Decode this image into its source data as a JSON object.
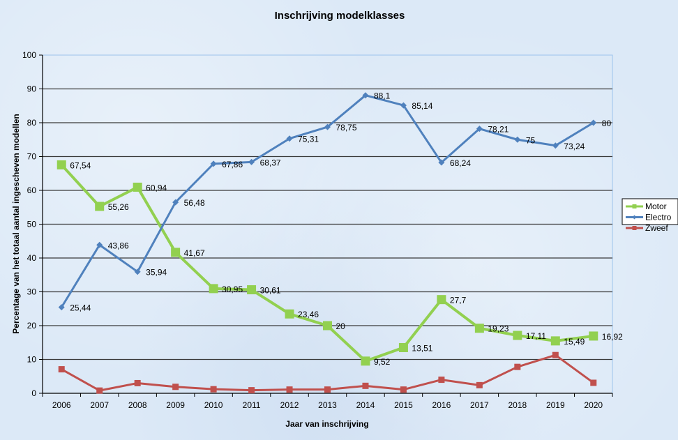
{
  "chart_data": {
    "type": "line",
    "title": "Inschrijving modelklasses",
    "xlabel": "Jaar van inschrijving",
    "ylabel": "Percentage van het totaal aantal ingescheven modellen",
    "ylim": [
      0,
      100
    ],
    "yticks": [
      "0",
      "10",
      "20",
      "30",
      "40",
      "50",
      "60",
      "70",
      "80",
      "90",
      "100"
    ],
    "grid": true,
    "legend_position": "right",
    "categories": [
      "2006",
      "2007",
      "2008",
      "2009",
      "2010",
      "2011",
      "2012",
      "2013",
      "2014",
      "2015",
      "2016",
      "2017",
      "2018",
      "2019",
      "2020"
    ],
    "series": [
      {
        "name": "Motor",
        "color": "#92d050",
        "marker": "square",
        "values": [
          67.54,
          55.26,
          60.94,
          41.67,
          30.95,
          30.61,
          23.46,
          20,
          9.52,
          13.51,
          27.7,
          19.23,
          17.11,
          15.49,
          16.92
        ],
        "labels": [
          "67,54",
          "55,26",
          "60,94",
          "41,67",
          "30,95",
          "30,61",
          "23,46",
          "20",
          "9,52",
          "13,51",
          "27,7",
          "19,23",
          "17,11",
          "15,49",
          "16,92"
        ]
      },
      {
        "name": "Electro",
        "color": "#4f81bd",
        "marker": "diamond",
        "values": [
          25.44,
          43.86,
          35.94,
          56.48,
          67.86,
          68.37,
          75.31,
          78.75,
          88.1,
          85.14,
          68.24,
          78.21,
          75,
          73.24,
          80
        ],
        "labels": [
          "25,44",
          "43,86",
          "35,94",
          "56,48",
          "67,86",
          "68,37",
          "75,31",
          "78,75",
          "88,1",
          "85,14",
          "68,24",
          "78,21",
          "75",
          "73,24",
          "80"
        ]
      },
      {
        "name": "Zweef",
        "color": "#c0504d",
        "marker": "square",
        "values": [
          7.1,
          0.8,
          3.0,
          1.9,
          1.2,
          0.9,
          1.1,
          1.1,
          2.2,
          1.1,
          4.0,
          2.4,
          7.8,
          11.3,
          3.1
        ],
        "labels": []
      }
    ]
  }
}
